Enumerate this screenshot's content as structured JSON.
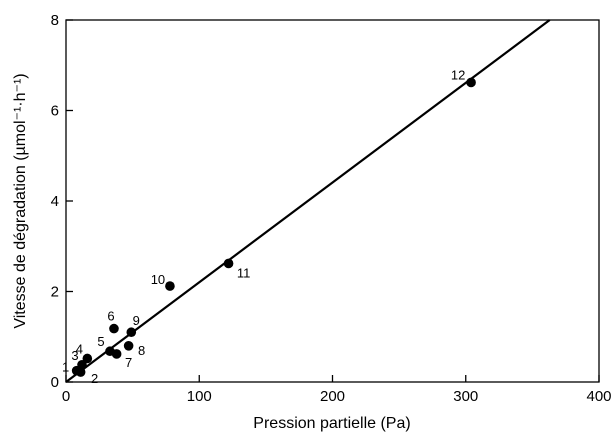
{
  "chart_data": {
    "type": "scatter",
    "xlabel": "Pression partielle (Pa)",
    "ylabel": "Vitesse de dégradation (µmol⁻¹·h⁻¹)",
    "xlim": [
      0,
      400
    ],
    "ylim": [
      0,
      8
    ],
    "x_ticks": [
      0,
      100,
      200,
      300,
      400
    ],
    "y_ticks": [
      0,
      2,
      4,
      6,
      8
    ],
    "grid": false,
    "legend": "none",
    "points": [
      {
        "label": "1",
        "x": 8,
        "y": 0.25
      },
      {
        "label": "2",
        "x": 11,
        "y": 0.22
      },
      {
        "label": "3",
        "x": 12,
        "y": 0.38
      },
      {
        "label": "4",
        "x": 16,
        "y": 0.52
      },
      {
        "label": "5",
        "x": 33,
        "y": 0.68
      },
      {
        "label": "6",
        "x": 36,
        "y": 1.18
      },
      {
        "label": "7",
        "x": 38,
        "y": 0.62
      },
      {
        "label": "8",
        "x": 47,
        "y": 0.8
      },
      {
        "label": "9",
        "x": 49,
        "y": 1.1
      },
      {
        "label": "10",
        "x": 78,
        "y": 2.12
      },
      {
        "label": "11",
        "x": 122,
        "y": 2.62
      },
      {
        "label": "12",
        "x": 304,
        "y": 6.62
      }
    ],
    "fit_line": {
      "x": [
        0,
        363
      ],
      "y": [
        0,
        8
      ]
    }
  }
}
